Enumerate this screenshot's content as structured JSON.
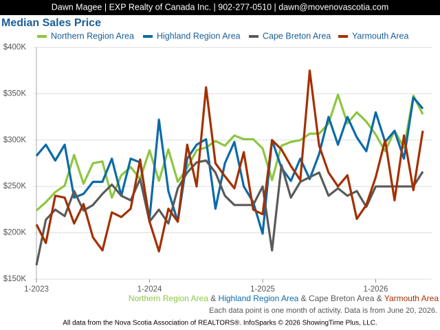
{
  "header": "Dawn Magee | EXP Realty of Canada Inc. | 902-277-0510 | dawn@movenovascotia.com",
  "chart_data": {
    "type": "line",
    "title": "Median Sales Price",
    "categories": [
      "1-2023",
      null,
      null,
      null,
      null,
      null,
      null,
      null,
      null,
      null,
      null,
      null,
      "1-2024",
      null,
      null,
      null,
      null,
      null,
      null,
      null,
      null,
      null,
      null,
      null,
      "1-2025",
      null,
      null,
      null,
      null,
      null,
      null,
      null,
      null,
      null,
      null,
      null,
      "1-2026",
      null,
      null,
      null,
      null,
      null
    ],
    "series": [
      {
        "name": "Northern Region Area",
        "color": "#8dc63f",
        "values": [
          224000,
          233000,
          244000,
          251000,
          284000,
          253000,
          275000,
          277000,
          238000,
          262000,
          271000,
          258000,
          289000,
          256000,
          290000,
          255000,
          270000,
          289000,
          292000,
          299000,
          294000,
          305000,
          301000,
          301000,
          291000,
          257000,
          294000,
          298000,
          300000,
          307000,
          307000,
          318000,
          349000,
          318000,
          330000,
          320000,
          306000,
          288000,
          310000,
          292000,
          348000,
          328000
        ]
      },
      {
        "name": "Highland Region Area",
        "color": "#0b6aa8",
        "values": [
          283000,
          295000,
          278000,
          295000,
          238000,
          242000,
          255000,
          255000,
          280000,
          240000,
          280000,
          276000,
          215000,
          322000,
          245000,
          212000,
          280000,
          295000,
          301000,
          226000,
          275000,
          298000,
          250000,
          233000,
          199000,
          300000,
          270000,
          256000,
          280000,
          258000,
          285000,
          325000,
          295000,
          325000,
          303000,
          288000,
          330000,
          298000,
          310000,
          280000,
          346000,
          334000
        ]
      },
      {
        "name": "Cape Breton Area",
        "color": "#5a5a5a",
        "values": [
          165000,
          214000,
          225000,
          218000,
          245000,
          224000,
          230000,
          242000,
          252000,
          240000,
          235000,
          258000,
          212000,
          225000,
          210000,
          248000,
          265000,
          276000,
          278000,
          265000,
          240000,
          230000,
          230000,
          230000,
          250000,
          181000,
          273000,
          238000,
          255000,
          260000,
          265000,
          240000,
          248000,
          240000,
          245000,
          228000,
          250000,
          250000,
          250000,
          250000,
          250000,
          266000
        ]
      },
      {
        "name": "Yarmouth Area",
        "color": "#a33000",
        "values": [
          209000,
          189000,
          240000,
          238000,
          210000,
          231000,
          195000,
          181000,
          222000,
          217000,
          226000,
          279000,
          212000,
          180000,
          226000,
          212000,
          295000,
          250000,
          357000,
          275000,
          261000,
          248000,
          287000,
          225000,
          220000,
          300000,
          290000,
          272000,
          257000,
          375000,
          294000,
          265000,
          250000,
          262000,
          215000,
          230000,
          260000,
          300000,
          235000,
          305000,
          246000,
          310000
        ]
      }
    ],
    "ylim": [
      150000,
      400000
    ],
    "yticks": [
      {
        "value": 150000,
        "label": "$150K"
      },
      {
        "value": 200000,
        "label": "$200K"
      },
      {
        "value": 250000,
        "label": "$250K"
      },
      {
        "value": 300000,
        "label": "$300K"
      },
      {
        "value": 350000,
        "label": "$350K"
      },
      {
        "value": 400000,
        "label": "$400K"
      }
    ],
    "grid": true,
    "footer_legend_separator": "&",
    "note": "Each data point is one month of activity. Data is from June 20, 2026.",
    "source": "All data from the Nova Scotia Association of REALTORS®. InfoSparks © 2026 ShowingTime Plus, LLC."
  }
}
